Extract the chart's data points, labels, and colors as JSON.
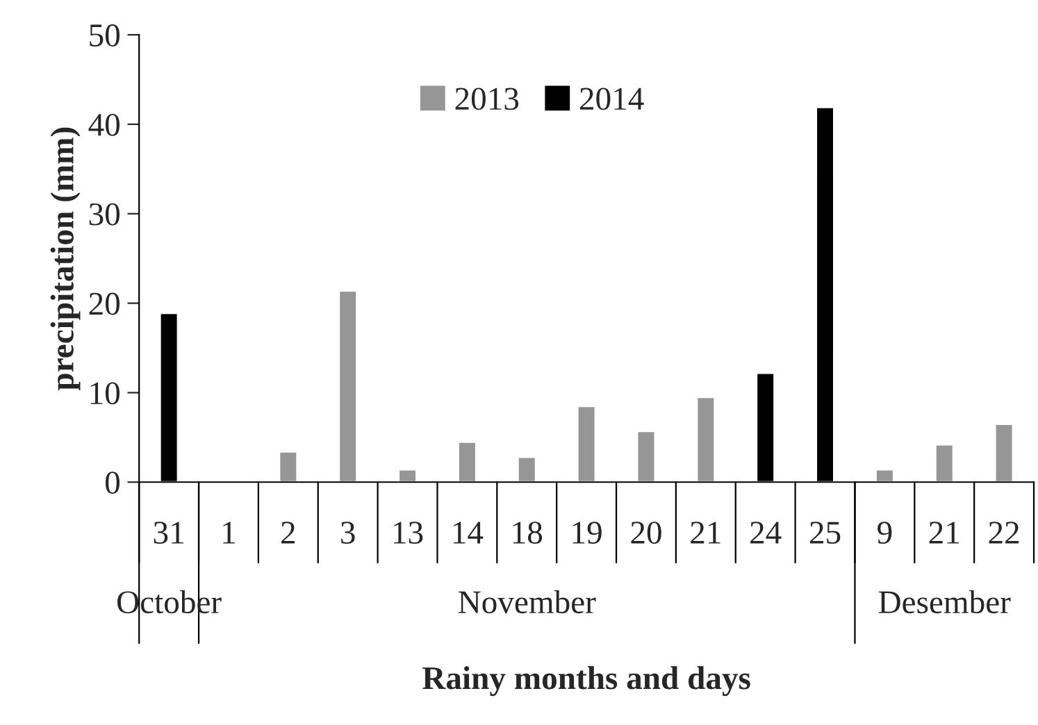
{
  "chart_data": {
    "type": "bar",
    "xlabel": "Rainy months and days",
    "ylabel": "precipitation (mm)",
    "categories": [
      "31",
      "1",
      "2",
      "3",
      "13",
      "14",
      "18",
      "19",
      "20",
      "21",
      "24",
      "25",
      "9",
      "21",
      "22"
    ],
    "series": [
      {
        "name": "2013",
        "color": "#969696",
        "values": [
          null,
          null,
          3.4,
          21.4,
          1.4,
          4.5,
          2.8,
          8.5,
          5.7,
          9.5,
          null,
          null,
          1.4,
          4.2,
          6.5
        ]
      },
      {
        "name": "2014",
        "color": "#000000",
        "values": [
          18.9,
          0.2,
          null,
          null,
          null,
          null,
          null,
          null,
          null,
          null,
          12.2,
          41.9,
          null,
          null,
          null
        ]
      }
    ],
    "ylim": [
      0,
      50
    ],
    "yticks": [
      0,
      10,
      20,
      30,
      40,
      50
    ],
    "grid": false,
    "legend": "top",
    "annotations": [
      "October",
      "November",
      "Desember"
    ]
  }
}
